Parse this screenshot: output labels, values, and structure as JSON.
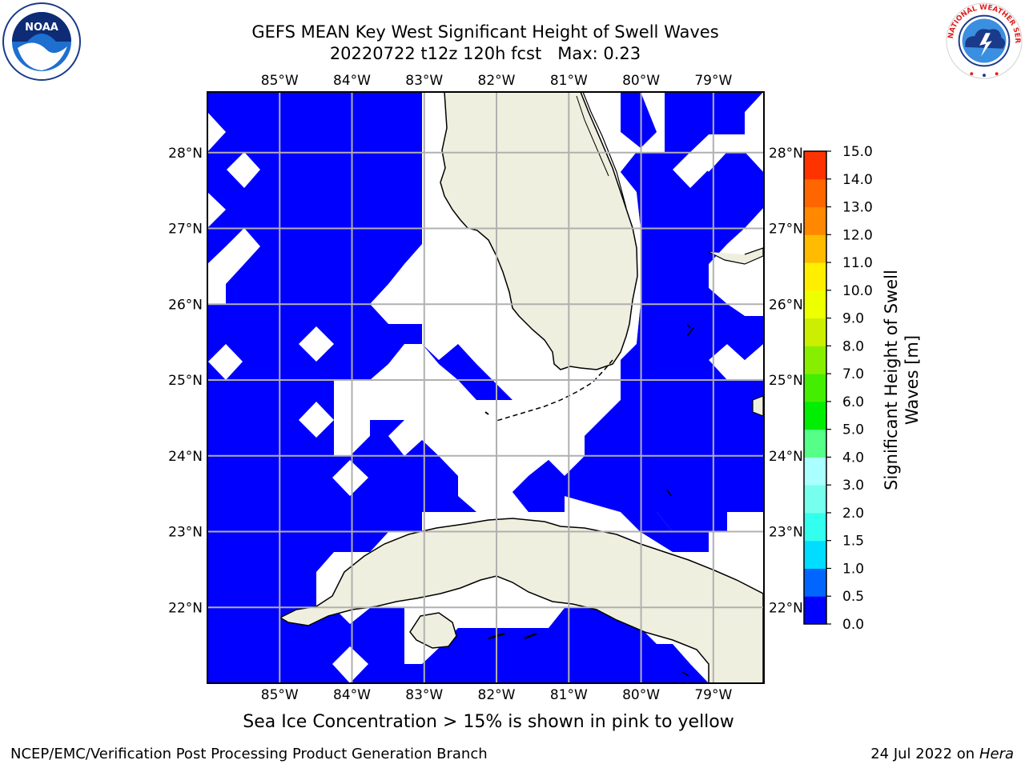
{
  "title": {
    "line1": "GEFS MEAN Key West Significant Height of Swell Waves",
    "line2": "20220722 t12z 120h fcst   Max: 0.23"
  },
  "map": {
    "lon_range": [
      -86,
      -78.3
    ],
    "lat_range": [
      21.0,
      28.8
    ],
    "lon_ticks": [
      "85°W",
      "84°W",
      "83°W",
      "82°W",
      "81°W",
      "80°W",
      "79°W"
    ],
    "lat_ticks": [
      "28°N",
      "27°N",
      "26°N",
      "25°N",
      "24°N",
      "23°N",
      "22°N"
    ],
    "colors": {
      "ocean_low": "#0000ff",
      "land": "#efefdf",
      "no_data": "#ffffff",
      "grid": "#b0b0b0"
    }
  },
  "colorbar": {
    "label": "Significant Height of Swell Waves [m]",
    "levels": [
      "0.0",
      "0.5",
      "1.0",
      "1.5",
      "2.0",
      "3.0",
      "4.0",
      "5.0",
      "6.0",
      "7.0",
      "8.0",
      "9.0",
      "10.0",
      "11.0",
      "12.0",
      "13.0",
      "14.0",
      "15.0"
    ],
    "colors": [
      "#0000ff",
      "#0066ff",
      "#00ddff",
      "#33ffee",
      "#77ffee",
      "#aaffff",
      "#55ff88",
      "#00ee00",
      "#44ee00",
      "#88ee00",
      "#ccee00",
      "#eeff00",
      "#ffee00",
      "#ffbb00",
      "#ff8800",
      "#ff6600",
      "#ff3300",
      "#ff0000"
    ]
  },
  "note": "Sea Ice Concentration > 15% is shown in pink to yellow",
  "footer": {
    "left": "NCEP/EMC/Verification Post Processing Product Generation Branch",
    "date": "24 Jul 2022 on ",
    "host": "Hera"
  },
  "logos": {
    "noaa_text": "NOAA",
    "noaa_ring": "NATIONAL OCEANIC AND ATMOSPHERIC ADMINISTRATION · U.S. DEPARTMENT OF COMMERCE",
    "nws_ring": "NATIONAL WEATHER SERVICE"
  }
}
